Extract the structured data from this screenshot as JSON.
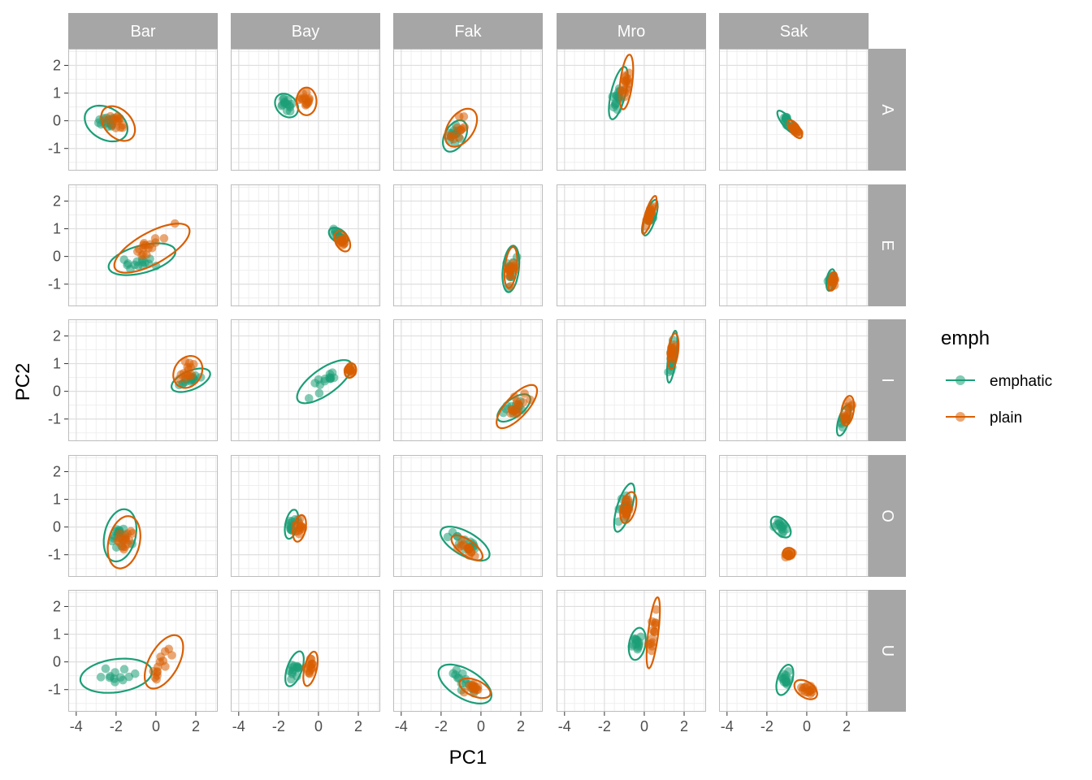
{
  "chart_data": {
    "type": "scatter",
    "xlabel": "PC1",
    "ylabel": "PC2",
    "xlim": [
      -4.4,
      3.1
    ],
    "ylim": [
      -1.8,
      2.6
    ],
    "x_ticks": [
      -4,
      -2,
      0,
      2
    ],
    "x_tick_labels": [
      "-4",
      "-2",
      "0",
      "2"
    ],
    "y_ticks": [
      -1,
      0,
      1,
      2
    ],
    "y_tick_labels": [
      "-1",
      "0",
      "1",
      "2"
    ],
    "grid": true,
    "facet_cols": [
      "Bar",
      "Bay",
      "Fak",
      "Mro",
      "Sak"
    ],
    "facet_rows": [
      "A",
      "E",
      "I",
      "O",
      "U"
    ],
    "legend": {
      "title": "emph",
      "position": "right",
      "entries": [
        {
          "label": "emphatic",
          "color": "#1B9E77"
        },
        {
          "label": "plain",
          "color": "#D95F02"
        }
      ]
    },
    "panels": [
      {
        "col": "Bar",
        "row": "A",
        "series": [
          {
            "name": "emphatic",
            "cx": -2.5,
            "cy": -0.1,
            "rx": 1.1,
            "ry": 0.6,
            "angle": -15,
            "n": 14
          },
          {
            "name": "plain",
            "cx": -1.9,
            "cy": -0.1,
            "rx": 0.9,
            "ry": 0.55,
            "angle": -25,
            "n": 14
          }
        ]
      },
      {
        "col": "Bay",
        "row": "A",
        "series": [
          {
            "name": "emphatic",
            "cx": -1.6,
            "cy": 0.55,
            "rx": 0.6,
            "ry": 0.4,
            "angle": -20,
            "n": 14
          },
          {
            "name": "plain",
            "cx": -0.6,
            "cy": 0.7,
            "rx": 0.5,
            "ry": 0.5,
            "angle": 65,
            "n": 14
          }
        ]
      },
      {
        "col": "Fak",
        "row": "A",
        "series": [
          {
            "name": "emphatic",
            "cx": -1.3,
            "cy": -0.55,
            "rx": 0.7,
            "ry": 0.45,
            "angle": 40,
            "n": 12
          },
          {
            "name": "plain",
            "cx": -1.0,
            "cy": -0.25,
            "rx": 0.9,
            "ry": 0.55,
            "angle": 35,
            "n": 12
          }
        ]
      },
      {
        "col": "Mro",
        "row": "A",
        "series": [
          {
            "name": "emphatic",
            "cx": -1.3,
            "cy": 1.0,
            "rx": 1.0,
            "ry": 0.35,
            "angle": 70,
            "n": 16
          },
          {
            "name": "plain",
            "cx": -0.9,
            "cy": 1.4,
            "rx": 1.0,
            "ry": 0.3,
            "angle": 80,
            "n": 16
          }
        ]
      },
      {
        "col": "Sak",
        "row": "A",
        "series": [
          {
            "name": "emphatic",
            "cx": -1.0,
            "cy": -0.05,
            "rx": 0.6,
            "ry": 0.2,
            "angle": -40,
            "n": 14
          },
          {
            "name": "plain",
            "cx": -0.6,
            "cy": -0.3,
            "rx": 0.45,
            "ry": 0.2,
            "angle": -40,
            "n": 14
          }
        ]
      },
      {
        "col": "Bar",
        "row": "E",
        "series": [
          {
            "name": "emphatic",
            "cx": -0.7,
            "cy": -0.1,
            "rx": 1.7,
            "ry": 0.5,
            "angle": 10,
            "n": 14
          },
          {
            "name": "plain",
            "cx": -0.2,
            "cy": 0.3,
            "rx": 2.0,
            "ry": 0.6,
            "angle": 20,
            "n": 16
          }
        ]
      },
      {
        "col": "Bay",
        "row": "E",
        "series": [
          {
            "name": "emphatic",
            "cx": 1.0,
            "cy": 0.75,
            "rx": 0.5,
            "ry": 0.25,
            "angle": -20,
            "n": 14
          },
          {
            "name": "plain",
            "cx": 1.2,
            "cy": 0.55,
            "rx": 0.45,
            "ry": 0.3,
            "angle": -40,
            "n": 14
          }
        ]
      },
      {
        "col": "Fak",
        "row": "E",
        "series": [
          {
            "name": "emphatic",
            "cx": 1.5,
            "cy": -0.45,
            "rx": 0.85,
            "ry": 0.4,
            "angle": 80,
            "n": 14
          },
          {
            "name": "plain",
            "cx": 1.5,
            "cy": -0.4,
            "rx": 0.75,
            "ry": 0.3,
            "angle": 80,
            "n": 14
          }
        ]
      },
      {
        "col": "Mro",
        "row": "E",
        "series": [
          {
            "name": "emphatic",
            "cx": 0.3,
            "cy": 1.4,
            "rx": 0.7,
            "ry": 0.25,
            "angle": 65,
            "n": 16
          },
          {
            "name": "plain",
            "cx": 0.25,
            "cy": 1.5,
            "rx": 0.75,
            "ry": 0.2,
            "angle": 65,
            "n": 16
          }
        ]
      },
      {
        "col": "Sak",
        "row": "E",
        "series": [
          {
            "name": "emphatic",
            "cx": 1.2,
            "cy": -0.85,
            "rx": 0.4,
            "ry": 0.2,
            "angle": 75,
            "n": 12
          },
          {
            "name": "plain",
            "cx": 1.3,
            "cy": -0.9,
            "rx": 0.35,
            "ry": 0.2,
            "angle": 70,
            "n": 12
          }
        ]
      },
      {
        "col": "Bar",
        "row": "I",
        "series": [
          {
            "name": "emphatic",
            "cx": 1.75,
            "cy": 0.4,
            "rx": 1.0,
            "ry": 0.35,
            "angle": 15,
            "n": 14
          },
          {
            "name": "plain",
            "cx": 1.6,
            "cy": 0.7,
            "rx": 0.75,
            "ry": 0.55,
            "angle": 20,
            "n": 14
          }
        ]
      },
      {
        "col": "Bay",
        "row": "I",
        "series": [
          {
            "name": "emphatic",
            "cx": 0.3,
            "cy": 0.35,
            "rx": 1.5,
            "ry": 0.5,
            "angle": 25,
            "n": 14
          },
          {
            "name": "plain",
            "cx": 1.6,
            "cy": 0.75,
            "rx": 0.3,
            "ry": 0.25,
            "angle": 30,
            "n": 14
          }
        ]
      },
      {
        "col": "Fak",
        "row": "I",
        "series": [
          {
            "name": "emphatic",
            "cx": 1.65,
            "cy": -0.6,
            "rx": 0.9,
            "ry": 0.35,
            "angle": 25,
            "n": 14
          },
          {
            "name": "plain",
            "cx": 1.8,
            "cy": -0.55,
            "rx": 1.2,
            "ry": 0.45,
            "angle": 35,
            "n": 14
          }
        ]
      },
      {
        "col": "Mro",
        "row": "I",
        "series": [
          {
            "name": "emphatic",
            "cx": 1.4,
            "cy": 1.25,
            "rx": 0.95,
            "ry": 0.2,
            "angle": 80,
            "n": 14
          },
          {
            "name": "plain",
            "cx": 1.45,
            "cy": 1.45,
            "rx": 0.65,
            "ry": 0.25,
            "angle": 80,
            "n": 14
          }
        ]
      },
      {
        "col": "Sak",
        "row": "I",
        "series": [
          {
            "name": "emphatic",
            "cx": 1.85,
            "cy": -1.05,
            "rx": 0.6,
            "ry": 0.25,
            "angle": 65,
            "n": 12
          },
          {
            "name": "plain",
            "cx": 2.05,
            "cy": -0.7,
            "rx": 0.55,
            "ry": 0.3,
            "angle": 75,
            "n": 12
          }
        ]
      },
      {
        "col": "Bar",
        "row": "O",
        "series": [
          {
            "name": "emphatic",
            "cx": -1.8,
            "cy": -0.3,
            "rx": 1.0,
            "ry": 0.75,
            "angle": 60,
            "n": 16
          },
          {
            "name": "plain",
            "cx": -1.6,
            "cy": -0.55,
            "rx": 1.0,
            "ry": 0.75,
            "angle": 60,
            "n": 16
          }
        ]
      },
      {
        "col": "Bay",
        "row": "O",
        "series": [
          {
            "name": "emphatic",
            "cx": -1.35,
            "cy": 0.1,
            "rx": 0.55,
            "ry": 0.3,
            "angle": 70,
            "n": 12
          },
          {
            "name": "plain",
            "cx": -0.95,
            "cy": -0.05,
            "rx": 0.5,
            "ry": 0.3,
            "angle": 70,
            "n": 12
          }
        ]
      },
      {
        "col": "Fak",
        "row": "O",
        "series": [
          {
            "name": "emphatic",
            "cx": -0.8,
            "cy": -0.6,
            "rx": 1.3,
            "ry": 0.45,
            "angle": -20,
            "n": 14
          },
          {
            "name": "plain",
            "cx": -0.7,
            "cy": -0.75,
            "rx": 0.85,
            "ry": 0.3,
            "angle": -25,
            "n": 14
          }
        ]
      },
      {
        "col": "Mro",
        "row": "O",
        "series": [
          {
            "name": "emphatic",
            "cx": -1.0,
            "cy": 0.7,
            "rx": 0.95,
            "ry": 0.35,
            "angle": 65,
            "n": 16
          },
          {
            "name": "plain",
            "cx": -0.8,
            "cy": 0.7,
            "rx": 0.6,
            "ry": 0.35,
            "angle": 65,
            "n": 16
          }
        ]
      },
      {
        "col": "Sak",
        "row": "O",
        "series": [
          {
            "name": "emphatic",
            "cx": -1.3,
            "cy": 0.0,
            "rx": 0.55,
            "ry": 0.3,
            "angle": -30,
            "n": 14
          },
          {
            "name": "plain",
            "cx": -0.9,
            "cy": -0.95,
            "rx": 0.3,
            "ry": 0.2,
            "angle": 0,
            "n": 14
          }
        ]
      },
      {
        "col": "Bar",
        "row": "U",
        "series": [
          {
            "name": "emphatic",
            "cx": -2.0,
            "cy": -0.5,
            "rx": 1.8,
            "ry": 0.6,
            "angle": 5,
            "n": 12
          },
          {
            "name": "plain",
            "cx": 0.4,
            "cy": 0.0,
            "rx": 1.2,
            "ry": 0.65,
            "angle": 45,
            "n": 14
          }
        ]
      },
      {
        "col": "Bay",
        "row": "U",
        "series": [
          {
            "name": "emphatic",
            "cx": -1.2,
            "cy": -0.25,
            "rx": 0.7,
            "ry": 0.35,
            "angle": 60,
            "n": 14
          },
          {
            "name": "plain",
            "cx": -0.4,
            "cy": -0.25,
            "rx": 0.65,
            "ry": 0.3,
            "angle": 70,
            "n": 14
          }
        ]
      },
      {
        "col": "Fak",
        "row": "U",
        "series": [
          {
            "name": "emphatic",
            "cx": -0.8,
            "cy": -0.8,
            "rx": 1.4,
            "ry": 0.55,
            "angle": -20,
            "n": 14
          },
          {
            "name": "plain",
            "cx": -0.3,
            "cy": -0.95,
            "rx": 0.8,
            "ry": 0.3,
            "angle": -15,
            "n": 14
          }
        ]
      },
      {
        "col": "Mro",
        "row": "U",
        "series": [
          {
            "name": "emphatic",
            "cx": -0.35,
            "cy": 0.65,
            "rx": 0.6,
            "ry": 0.4,
            "angle": 70,
            "n": 14
          },
          {
            "name": "plain",
            "cx": 0.45,
            "cy": 1.05,
            "rx": 1.3,
            "ry": 0.25,
            "angle": 80,
            "n": 14
          }
        ]
      },
      {
        "col": "Sak",
        "row": "U",
        "series": [
          {
            "name": "emphatic",
            "cx": -1.1,
            "cy": -0.65,
            "rx": 0.6,
            "ry": 0.35,
            "angle": 60,
            "n": 14
          },
          {
            "name": "plain",
            "cx": -0.05,
            "cy": -1.0,
            "rx": 0.6,
            "ry": 0.3,
            "angle": -20,
            "n": 14
          }
        ]
      }
    ]
  }
}
